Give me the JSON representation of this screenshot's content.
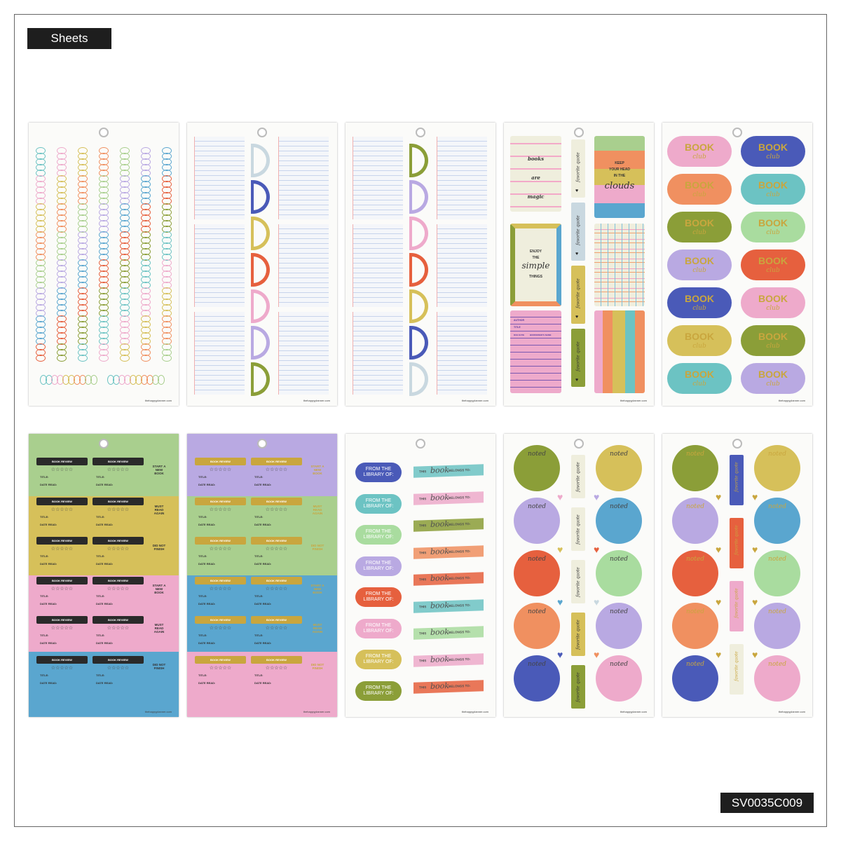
{
  "header": {
    "label": "Sheets"
  },
  "product_code": "SV0035C009",
  "brand": "thehappyplanner.com",
  "colors": {
    "green": "#a9cf8e",
    "mustard": "#d6c05a",
    "pink": "#eeaacb",
    "blue": "#5aa6cf",
    "lavender": "#b9a9e2",
    "orange": "#f09060",
    "red": "#e6603e",
    "olive": "#8b9e38",
    "teal": "#6cc3c3",
    "navy": "#4a5ab8",
    "lightblue": "#c9d8e0",
    "mint": "#a9dc9f",
    "cream": "#efeedd",
    "gold": "#c9a63e"
  },
  "sheet1": {
    "spiral_colors": [
      "teal",
      "pink",
      "mustard",
      "orange",
      "green",
      "lavender",
      "blue",
      "red",
      "olive"
    ]
  },
  "sheet2": {
    "tab_colors": [
      "lightblue",
      "navy",
      "mustard",
      "red",
      "pink",
      "lavender",
      "olive"
    ]
  },
  "sheet3": {
    "tab_colors": [
      "olive",
      "lavender",
      "pink",
      "red",
      "mustard",
      "navy",
      "lightblue"
    ]
  },
  "sheet4": {
    "card1": [
      "books",
      "are",
      "magic"
    ],
    "card2": {
      "lines": [
        "KEEP",
        "YOUR HEAD",
        "IN THE"
      ],
      "script": "clouds"
    },
    "card3": {
      "lines": [
        "ENJOY",
        "THE"
      ],
      "script": "simple",
      "last": "THINGS"
    },
    "library": {
      "author": "AUTHOR",
      "title": "TITLE",
      "due": "DUE DATE",
      "borrower": "BORROWER'S NAME"
    },
    "tab_label": "favorite quote",
    "tab_colors": [
      "cream",
      "lightblue",
      "mustard",
      "olive"
    ]
  },
  "sheet5": {
    "title": "BOOK",
    "subtitle": "club",
    "left": [
      "pink",
      "orange",
      "olive",
      "lavender",
      "navy",
      "mustard",
      "teal"
    ],
    "right": [
      "navy",
      "teal",
      "mint",
      "red",
      "pink",
      "olive",
      "lavender"
    ]
  },
  "review": {
    "heading": "BOOK REVIEW",
    "stars": "☆☆☆☆☆",
    "title": "TITLE:",
    "date": "DATE READ:",
    "side": [
      "START A NEW BOOK",
      "MUST READ AGAIN",
      "DID NOT FINISH",
      "START A NEW BOOK",
      "MUST READ AGAIN",
      "DID NOT FINISH"
    ]
  },
  "sheet6": {
    "bands": [
      "green",
      "mustard",
      "pink",
      "blue"
    ]
  },
  "sheet7": {
    "bands": [
      "lavender",
      "green",
      "blue",
      "pink"
    ]
  },
  "sheet8": {
    "library_label": "FROM THE LIBRARY OF:",
    "belongs": {
      "pre": "THIS",
      "script": "book",
      "post": "BELONGS TO:"
    },
    "left": [
      "navy",
      "teal",
      "mint",
      "lavender",
      "red",
      "pink",
      "mustard",
      "olive"
    ],
    "right": [
      "teal",
      "pink",
      "olive",
      "orange",
      "red",
      "teal",
      "mint",
      "pink",
      "red"
    ]
  },
  "sheet9": {
    "noted": "noted",
    "left": [
      "olive",
      "lavender",
      "red",
      "orange",
      "navy"
    ],
    "right": [
      "mustard",
      "blue",
      "mint",
      "lavender",
      "pink"
    ],
    "tabs": [
      "cream",
      "cream",
      "cream",
      "mustard",
      "olive"
    ],
    "hearts": [
      "pink",
      "lavender",
      "mustard",
      "red",
      "blue",
      "lightblue",
      "navy",
      "orange"
    ]
  },
  "sheet10": {
    "left": [
      "olive",
      "lavender",
      "red",
      "orange",
      "navy"
    ],
    "right": [
      "mustard",
      "blue",
      "mint",
      "lavender",
      "pink"
    ],
    "tabs": [
      "navy",
      "red",
      "pink",
      "cream"
    ],
    "hearts": [
      "gold",
      "gold",
      "gold",
      "gold",
      "gold",
      "gold",
      "gold",
      "gold"
    ]
  }
}
